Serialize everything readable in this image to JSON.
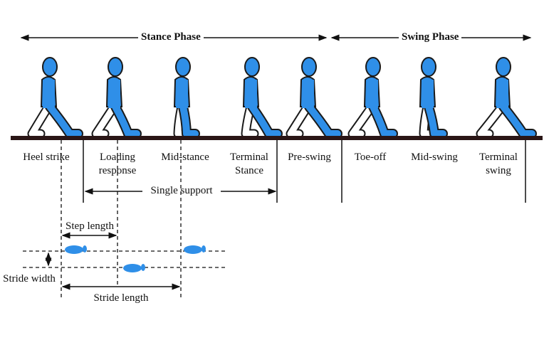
{
  "phases": {
    "stance": "Stance Phase",
    "swing": "Swing Phase"
  },
  "events": [
    {
      "label": "Heel strike"
    },
    {
      "label": "Loading response"
    },
    {
      "label": "Mid-stance"
    },
    {
      "label": "Terminal Stance"
    },
    {
      "label": "Pre-swing"
    },
    {
      "label": "Toe-off"
    },
    {
      "label": "Mid-swing"
    },
    {
      "label": "Terminal swing"
    }
  ],
  "single_support": "Single support",
  "step_length": "Step length",
  "stride_width": "Stride width",
  "stride_length": "Stride length",
  "colors": {
    "figure": "#2f8fe8",
    "ground": "#2a1616",
    "outline": "#1a1a1a"
  }
}
